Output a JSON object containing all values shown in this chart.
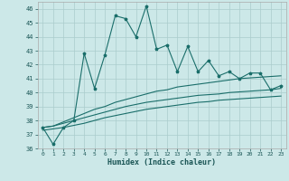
{
  "xlabel": "Humidex (Indice chaleur)",
  "ylabel": "",
  "bg_color": "#cce8e8",
  "grid_color": "#aacccc",
  "line_color": "#1a6e6a",
  "xlim": [
    -0.5,
    23.5
  ],
  "ylim": [
    36,
    46.5
  ],
  "yticks": [
    36,
    37,
    38,
    39,
    40,
    41,
    42,
    43,
    44,
    45,
    46
  ],
  "xticks": [
    0,
    1,
    2,
    3,
    4,
    5,
    6,
    7,
    8,
    9,
    10,
    11,
    12,
    13,
    14,
    15,
    16,
    17,
    18,
    19,
    20,
    21,
    22,
    23
  ],
  "main_line": [
    37.5,
    36.3,
    37.5,
    38.0,
    42.8,
    40.3,
    42.7,
    45.5,
    45.3,
    44.0,
    46.2,
    43.1,
    43.4,
    41.5,
    43.3,
    41.5,
    42.3,
    41.2,
    41.5,
    41.0,
    41.4,
    41.4,
    40.2,
    40.5
  ],
  "smooth_line1": [
    37.5,
    37.6,
    37.9,
    38.2,
    38.5,
    38.8,
    39.0,
    39.3,
    39.5,
    39.7,
    39.9,
    40.1,
    40.2,
    40.4,
    40.5,
    40.6,
    40.7,
    40.8,
    40.9,
    41.0,
    41.05,
    41.1,
    41.15,
    41.2
  ],
  "smooth_line2": [
    37.5,
    37.6,
    37.8,
    38.0,
    38.2,
    38.4,
    38.6,
    38.8,
    39.0,
    39.15,
    39.3,
    39.4,
    39.5,
    39.6,
    39.7,
    39.8,
    39.85,
    39.9,
    40.0,
    40.05,
    40.1,
    40.15,
    40.2,
    40.3
  ],
  "smooth_line3": [
    37.3,
    37.4,
    37.5,
    37.65,
    37.8,
    38.0,
    38.2,
    38.35,
    38.5,
    38.65,
    38.8,
    38.9,
    39.0,
    39.1,
    39.2,
    39.3,
    39.35,
    39.45,
    39.5,
    39.55,
    39.6,
    39.65,
    39.7,
    39.75
  ]
}
